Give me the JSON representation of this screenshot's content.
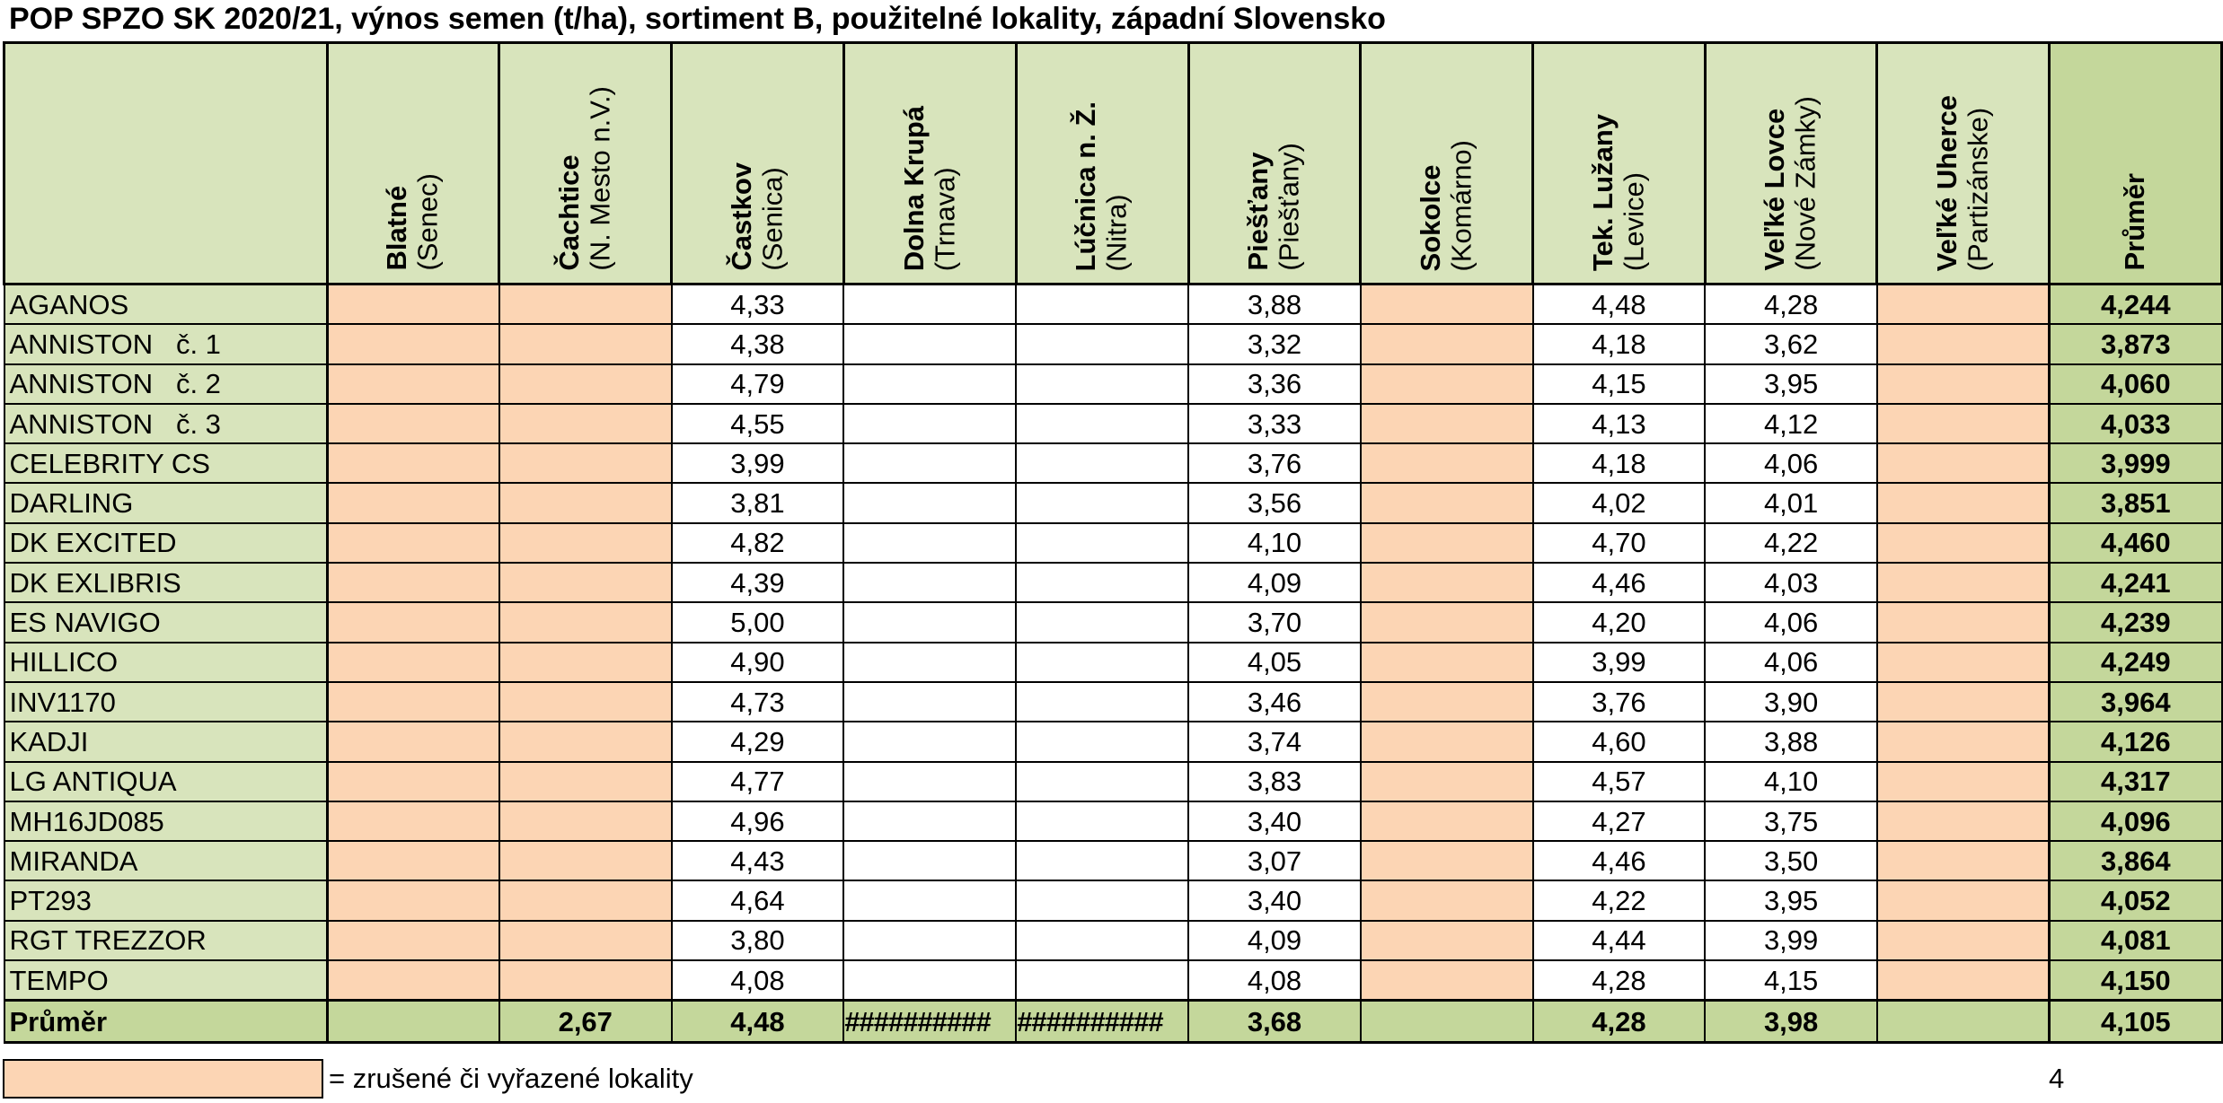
{
  "title": "POP SPZO SK 2020/21, výnos semen (t/ha), sortiment B, použitelné lokality, západní Slovensko",
  "columns": [
    {
      "name": "Blatné",
      "region": "(Senec)"
    },
    {
      "name": "Čachtice",
      "region": "(N. Mesto n.V.)"
    },
    {
      "name": "Častkov",
      "region": "(Senica)"
    },
    {
      "name": "Dolna Krupá",
      "region": "(Trnava)"
    },
    {
      "name": "Lúčnica n. Ž.",
      "region": "(Nitra)"
    },
    {
      "name": "Piešťany",
      "region": "(Piešťany)"
    },
    {
      "name": "Sokolce",
      "region": "(Komárno)"
    },
    {
      "name": "Tek. Lužany",
      "region": "(Levice)"
    },
    {
      "name": "Veľké Lovce",
      "region": "(Nové Zámky)"
    },
    {
      "name": "Veľké Uherce",
      "region": "(Partizánske)"
    }
  ],
  "average_header": "Průměr",
  "rows": [
    {
      "name": "AGANOS",
      "values": [
        "",
        "",
        "4,33",
        "",
        "",
        "3,88",
        "",
        "4,48",
        "4,28",
        ""
      ],
      "avg": "4,244"
    },
    {
      "name": "ANNISTON   č. 1",
      "values": [
        "",
        "",
        "4,38",
        "",
        "",
        "3,32",
        "",
        "4,18",
        "3,62",
        ""
      ],
      "avg": "3,873"
    },
    {
      "name": "ANNISTON   č. 2",
      "values": [
        "",
        "",
        "4,79",
        "",
        "",
        "3,36",
        "",
        "4,15",
        "3,95",
        ""
      ],
      "avg": "4,060"
    },
    {
      "name": "ANNISTON   č. 3",
      "values": [
        "",
        "",
        "4,55",
        "",
        "",
        "3,33",
        "",
        "4,13",
        "4,12",
        ""
      ],
      "avg": "4,033"
    },
    {
      "name": "CELEBRITY CS",
      "values": [
        "",
        "",
        "3,99",
        "",
        "",
        "3,76",
        "",
        "4,18",
        "4,06",
        ""
      ],
      "avg": "3,999"
    },
    {
      "name": "DARLING",
      "values": [
        "",
        "",
        "3,81",
        "",
        "",
        "3,56",
        "",
        "4,02",
        "4,01",
        ""
      ],
      "avg": "3,851"
    },
    {
      "name": "DK EXCITED",
      "values": [
        "",
        "",
        "4,82",
        "",
        "",
        "4,10",
        "",
        "4,70",
        "4,22",
        ""
      ],
      "avg": "4,460"
    },
    {
      "name": "DK EXLIBRIS",
      "values": [
        "",
        "",
        "4,39",
        "",
        "",
        "4,09",
        "",
        "4,46",
        "4,03",
        ""
      ],
      "avg": "4,241"
    },
    {
      "name": "ES NAVIGO",
      "values": [
        "",
        "",
        "5,00",
        "",
        "",
        "3,70",
        "",
        "4,20",
        "4,06",
        ""
      ],
      "avg": "4,239"
    },
    {
      "name": "HILLICO",
      "values": [
        "",
        "",
        "4,90",
        "",
        "",
        "4,05",
        "",
        "3,99",
        "4,06",
        ""
      ],
      "avg": "4,249"
    },
    {
      "name": "INV1170",
      "values": [
        "",
        "",
        "4,73",
        "",
        "",
        "3,46",
        "",
        "3,76",
        "3,90",
        ""
      ],
      "avg": "3,964"
    },
    {
      "name": "KADJI",
      "values": [
        "",
        "",
        "4,29",
        "",
        "",
        "3,74",
        "",
        "4,60",
        "3,88",
        ""
      ],
      "avg": "4,126"
    },
    {
      "name": "LG ANTIQUA",
      "values": [
        "",
        "",
        "4,77",
        "",
        "",
        "3,83",
        "",
        "4,57",
        "4,10",
        ""
      ],
      "avg": "4,317"
    },
    {
      "name": "MH16JD085",
      "values": [
        "",
        "",
        "4,96",
        "",
        "",
        "3,40",
        "",
        "4,27",
        "3,75",
        ""
      ],
      "avg": "4,096"
    },
    {
      "name": "MIRANDA",
      "values": [
        "",
        "",
        "4,43",
        "",
        "",
        "3,07",
        "",
        "4,46",
        "3,50",
        ""
      ],
      "avg": "3,864"
    },
    {
      "name": "PT293",
      "values": [
        "",
        "",
        "4,64",
        "",
        "",
        "3,40",
        "",
        "4,22",
        "3,95",
        ""
      ],
      "avg": "4,052"
    },
    {
      "name": "RGT TREZZOR",
      "values": [
        "",
        "",
        "3,80",
        "",
        "",
        "4,09",
        "",
        "4,44",
        "3,99",
        ""
      ],
      "avg": "4,081"
    },
    {
      "name": "TEMPO",
      "values": [
        "",
        "",
        "4,08",
        "",
        "",
        "4,08",
        "",
        "4,28",
        "4,15",
        ""
      ],
      "avg": "4,150"
    }
  ],
  "footer": {
    "label": "Průměr",
    "values": [
      "",
      "2,67",
      "4,48",
      "##########",
      "##########",
      "3,68",
      "",
      "4,28",
      "3,98",
      ""
    ],
    "avg": "4,105"
  },
  "cancelled_columns": [
    0,
    1,
    6,
    9
  ],
  "colors": {
    "header_green": "#d8e4bc",
    "average_green": "#c4d79b",
    "cancelled_orange": "#fcd5b4"
  },
  "legend": {
    "text": "= zrušené či vyřazené lokality"
  },
  "page_number": "4"
}
